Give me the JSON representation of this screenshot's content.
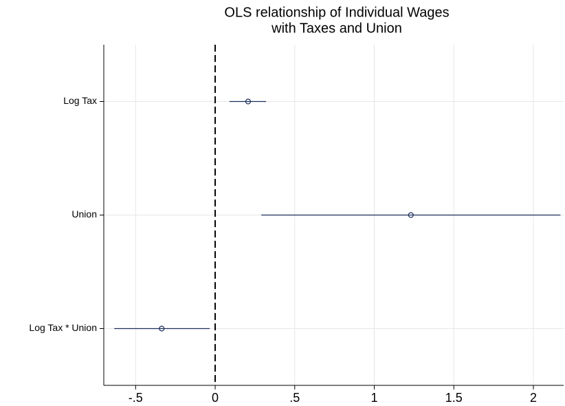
{
  "chart_data": {
    "type": "coefplot",
    "title": [
      "OLS relationship of Individual Wages",
      "with Taxes and Union"
    ],
    "categories": [
      "Log Tax",
      "Union",
      "Log Tax * Union"
    ],
    "values": [
      0.207,
      1.23,
      -0.336
    ],
    "ci_low": [
      0.09,
      0.29,
      -0.634
    ],
    "ci_high": [
      0.32,
      2.17,
      -0.034
    ],
    "color": "#1a2d5a",
    "xlim": [
      -0.7,
      2.19
    ],
    "xticks": [
      {
        "value": -0.5,
        "label": "-.5"
      },
      0,
      {
        "value": 0.5,
        "label": ".5"
      },
      1,
      1.5,
      2
    ],
    "xline": 0,
    "grid": true
  }
}
